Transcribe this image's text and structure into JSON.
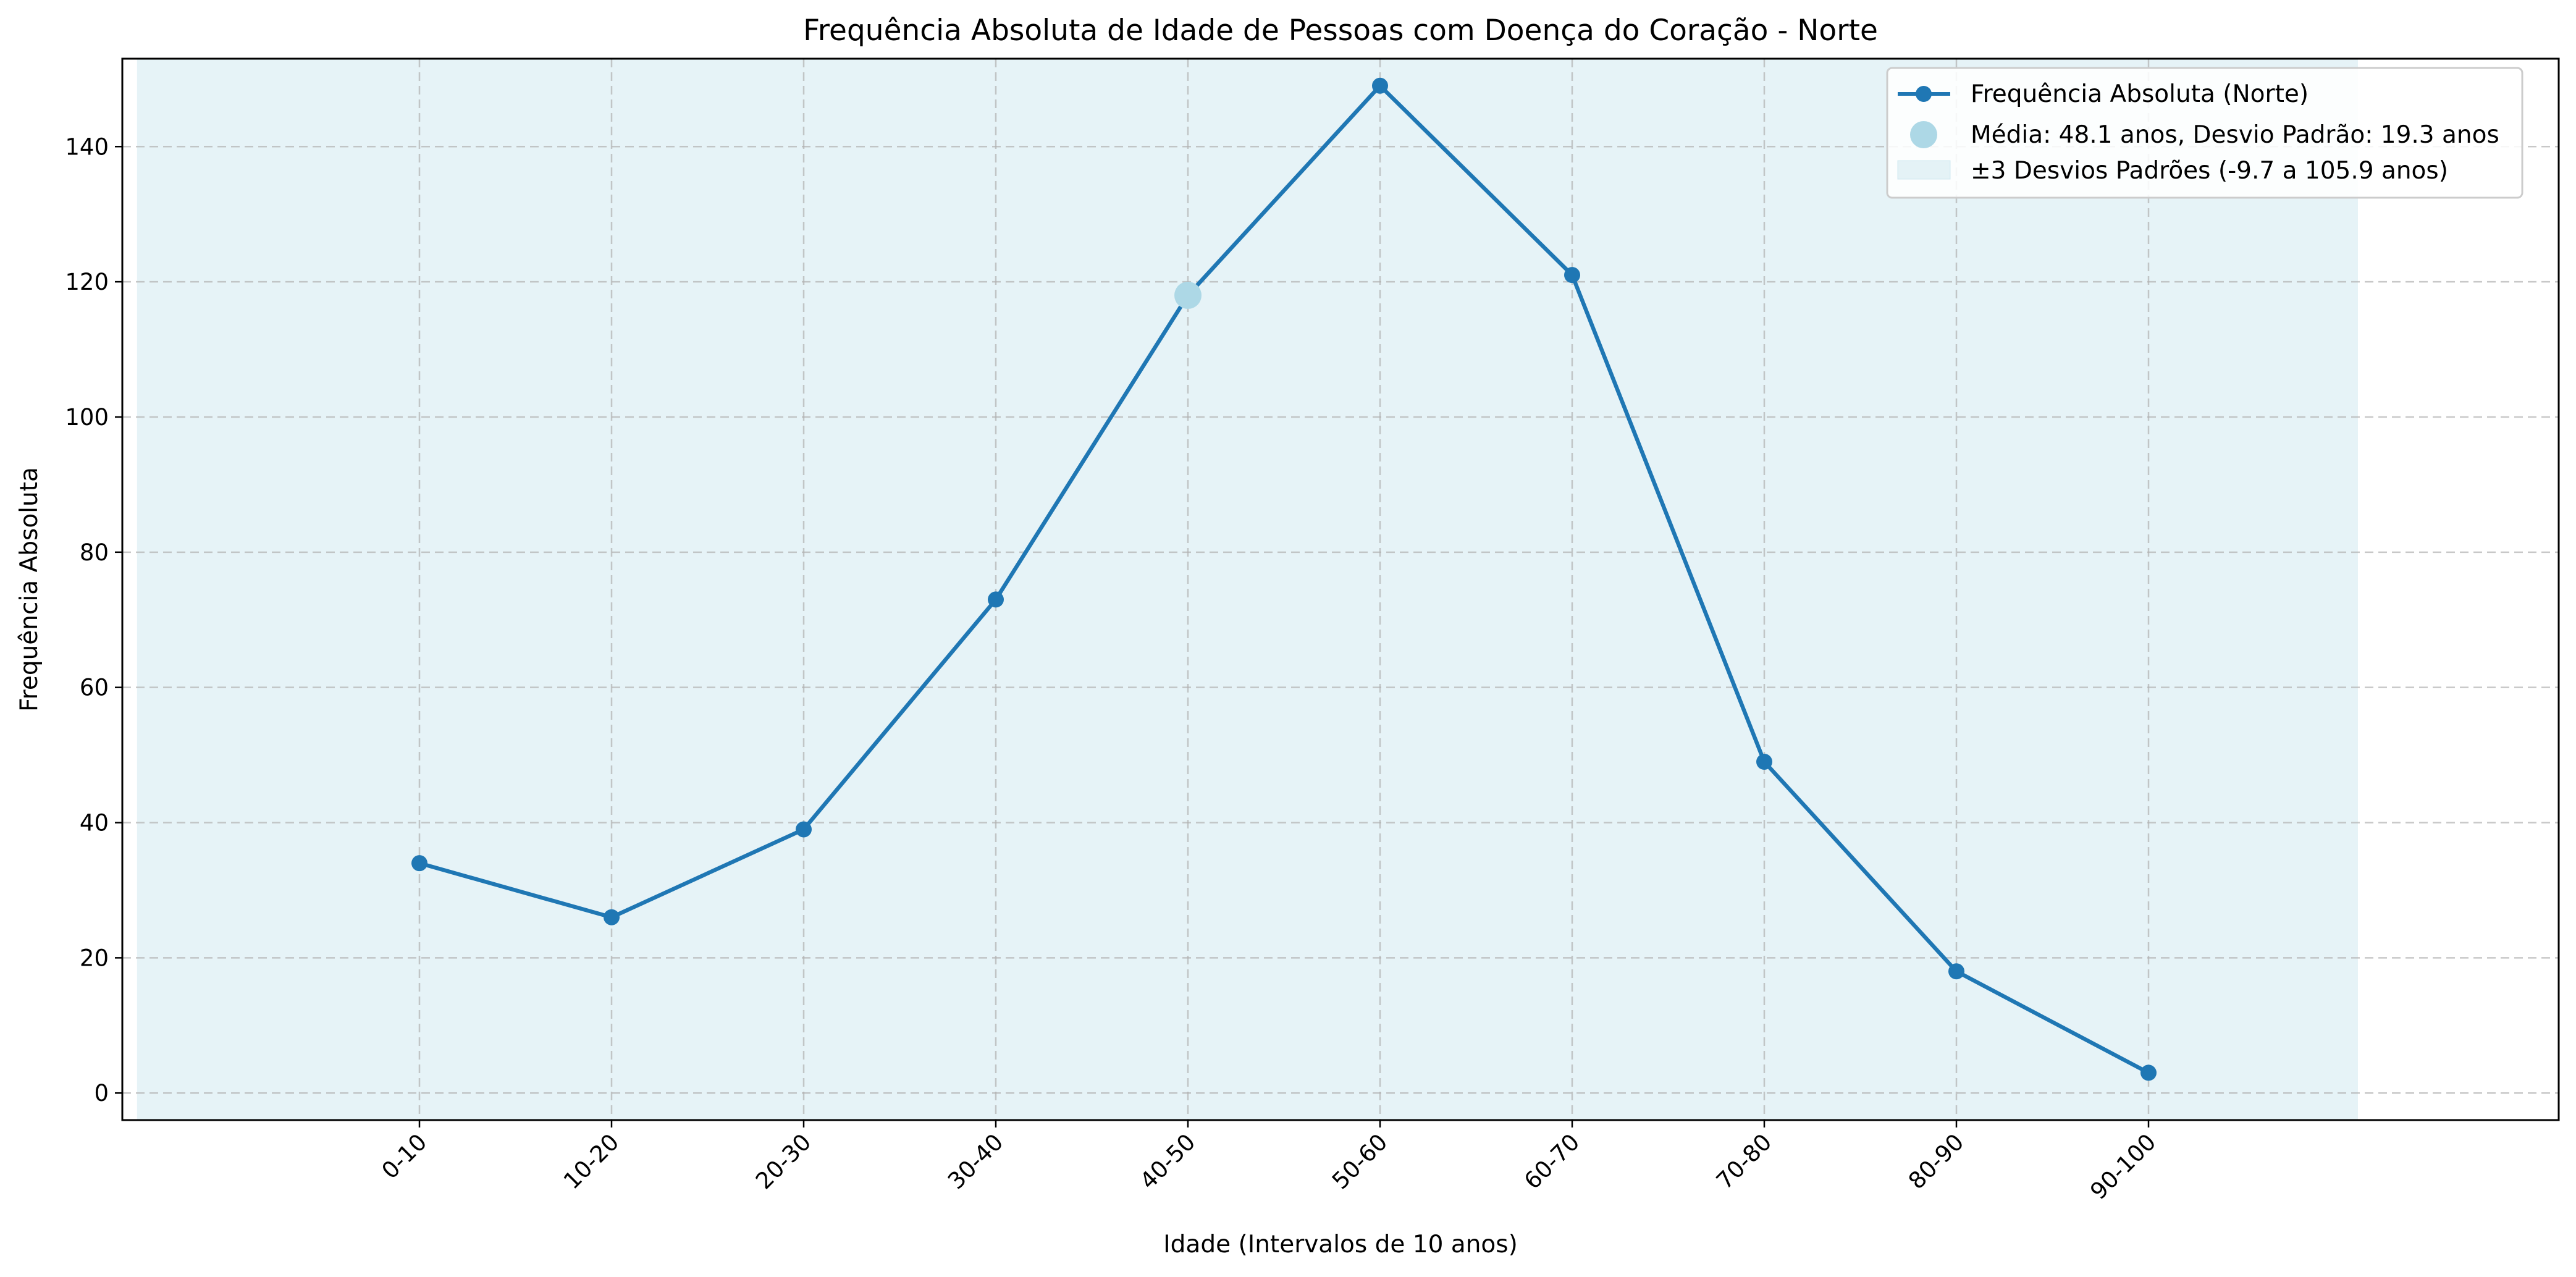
{
  "chart_data": {
    "type": "line",
    "title": "Frequência Absoluta de Idade de Pessoas com Doença do Coração - Norte",
    "xlabel": "Idade (Intervalos de 10 anos)",
    "ylabel": "Frequência Absoluta",
    "categories": [
      "0-10",
      "10-20",
      "20-30",
      "30-40",
      "40-50",
      "50-60",
      "60-70",
      "70-80",
      "80-90",
      "90-100"
    ],
    "series": [
      {
        "name": "Frequência Absoluta (Norte)",
        "values": [
          34,
          26,
          39,
          73,
          118,
          149,
          121,
          49,
          18,
          3
        ],
        "color": "#1f77b4"
      }
    ],
    "mean_marker": {
      "category": "40-50",
      "value": 118,
      "color": "#add8e6"
    },
    "band": {
      "from": -9.7,
      "to": 105.9,
      "color": "#add8e6"
    },
    "ylim": [
      -4,
      153
    ],
    "yticks": [
      0,
      20,
      40,
      60,
      80,
      100,
      120,
      140
    ],
    "grid": true,
    "legend_position": "top-right",
    "legend": [
      {
        "label": "Frequência Absoluta (Norte)"
      },
      {
        "label": "Média: 48.1 anos, Desvio Padrão: 19.3 anos"
      },
      {
        "label": "±3 Desvios Padrões (-9.7 a 105.9 anos)"
      }
    ]
  }
}
